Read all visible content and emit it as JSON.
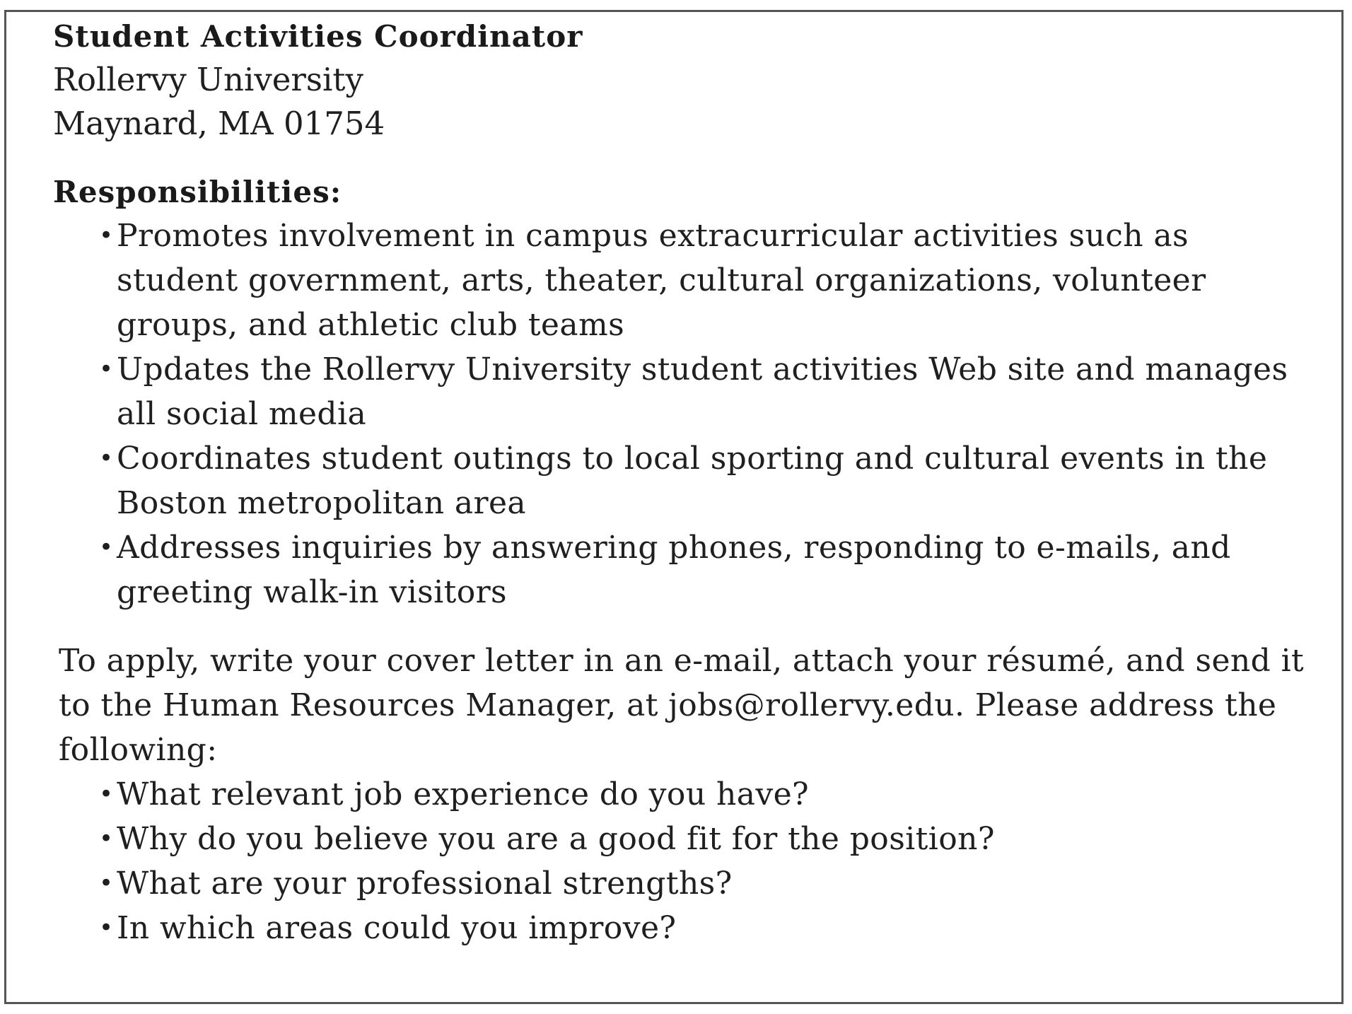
{
  "posting": {
    "title": "Student Activities Coordinator",
    "employer": "Rollervy University",
    "location": "Maynard, MA 01754"
  },
  "responsibilities": {
    "heading": "Responsibilities:",
    "items": [
      "Promotes involvement in campus extracurricular activities such as student government, arts, theater, cultural organizations, volunteer groups, and athletic club teams",
      "Updates the Rollervy University student activities Web site and manages all social media",
      "Coordinates student outings to local sporting and cultural events in the Boston metropolitan area",
      "Addresses inquiries by answering phones, responding to e-mails, and greeting walk-in visitors"
    ]
  },
  "application": {
    "instructions": "To apply, write your cover letter in an e-mail, attach your résumé, and send it to the Human Resources Manager, at jobs@rollervy.edu. Please address the following:",
    "questions": [
      "What relevant job experience do you have?",
      "Why do you believe you are a good fit for the position?",
      "What are your professional strengths?",
      "In which areas could you improve?"
    ]
  }
}
